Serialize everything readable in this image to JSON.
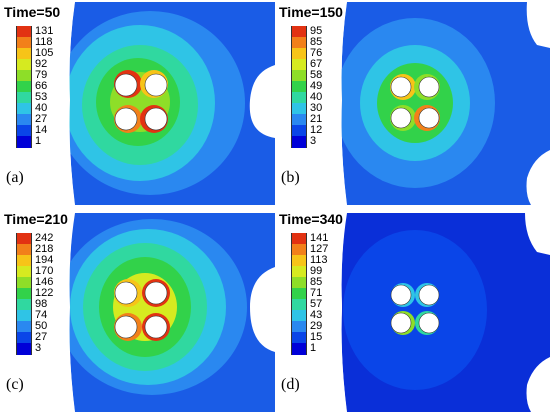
{
  "colors": {
    "scale": [
      "#0000d8",
      "#0a45e8",
      "#2a88f0",
      "#2fc4e6",
      "#30d8a0",
      "#32d24a",
      "#8ede28",
      "#d6ea20",
      "#f7c418",
      "#f2801a",
      "#e23212"
    ],
    "hole": "#ffffff"
  },
  "panels": [
    {
      "id": "a",
      "label": "(a)",
      "time": "Time=50",
      "legend": [
        "131",
        "118",
        "105",
        "92",
        "79",
        "66",
        "53",
        "40",
        "27",
        "14",
        "1"
      ],
      "intensity": "high"
    },
    {
      "id": "b",
      "label": "(b)",
      "time": "Time=150",
      "legend": [
        "95",
        "85",
        "76",
        "67",
        "58",
        "49",
        "40",
        "30",
        "21",
        "12",
        "3"
      ],
      "intensity": "medium"
    },
    {
      "id": "c",
      "label": "(c)",
      "time": "Time=210",
      "legend": [
        "242",
        "218",
        "194",
        "170",
        "146",
        "122",
        "98",
        "74",
        "50",
        "27",
        "3"
      ],
      "intensity": "high"
    },
    {
      "id": "d",
      "label": "(d)",
      "time": "Time=340",
      "legend": [
        "141",
        "127",
        "113",
        "99",
        "85",
        "71",
        "57",
        "43",
        "29",
        "15",
        "1"
      ],
      "intensity": "low"
    }
  ]
}
